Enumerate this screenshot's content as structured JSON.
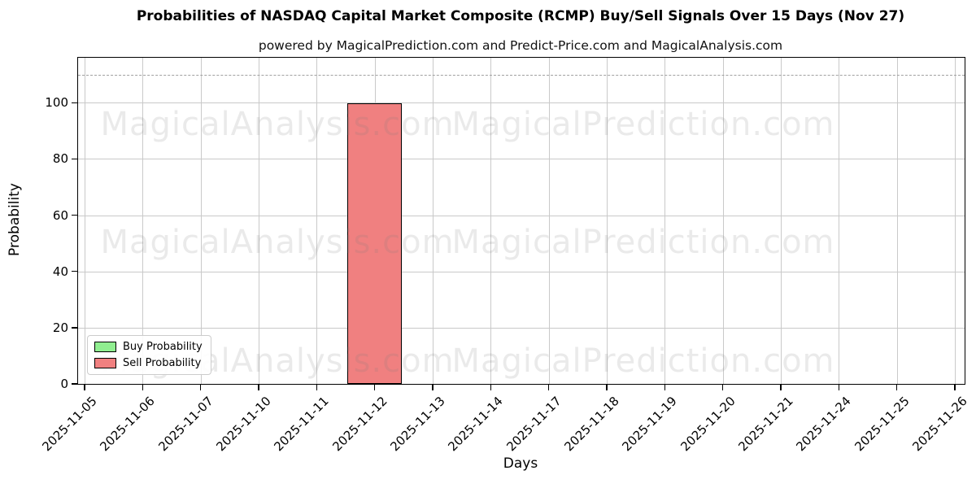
{
  "header": {
    "title": "Probabilities of NASDAQ Capital Market Composite (RCMP) Buy/Sell Signals Over 15 Days (Nov 27)",
    "subtitle": "powered by MagicalPrediction.com and Predict-Price.com and MagicalAnalysis.com"
  },
  "chart_data": {
    "type": "bar",
    "title": "Probabilities of NASDAQ Capital Market Composite (RCMP) Buy/Sell Signals Over 15 Days (Nov 27)",
    "subtitle": "powered by MagicalPrediction.com and Predict-Price.com and MagicalAnalysis.com",
    "xlabel": "Days",
    "ylabel": "Probability",
    "categories": [
      "2025-11-05",
      "2025-11-06",
      "2025-11-07",
      "2025-11-10",
      "2025-11-11",
      "2025-11-12",
      "2025-11-13",
      "2025-11-14",
      "2025-11-17",
      "2025-11-18",
      "2025-11-19",
      "2025-11-20",
      "2025-11-21",
      "2025-11-24",
      "2025-11-25",
      "2025-11-26"
    ],
    "series": [
      {
        "name": "Buy Probability",
        "color": "#90EE90",
        "edge_color": "#000000",
        "values": [
          0,
          0,
          0,
          0,
          0,
          0,
          0,
          0,
          0,
          0,
          0,
          0,
          0,
          0,
          0,
          0
        ]
      },
      {
        "name": "Sell Probability",
        "color": "#F08080",
        "edge_color": "#000000",
        "values": [
          0,
          0,
          0,
          0,
          0,
          99.9,
          0,
          0,
          0,
          0,
          0,
          0,
          0,
          0,
          0,
          0
        ]
      }
    ],
    "ylim": [
      0,
      116
    ],
    "yticks": [
      0,
      20,
      40,
      60,
      80,
      100
    ],
    "grid": true,
    "dashed_line_y": 110,
    "legend_position": "lower left",
    "bar_width_ratio": 0.94
  },
  "colors": {
    "grid": "#c9c9c9",
    "dashed_line": "#a0a0a0",
    "spine": "#000000",
    "watermark": "rgba(125,125,125,0.16)",
    "background": "#ffffff"
  },
  "watermarks": {
    "left_text": "MagicalAnalysis.com",
    "right_text": "MagicalPrediction.com"
  }
}
